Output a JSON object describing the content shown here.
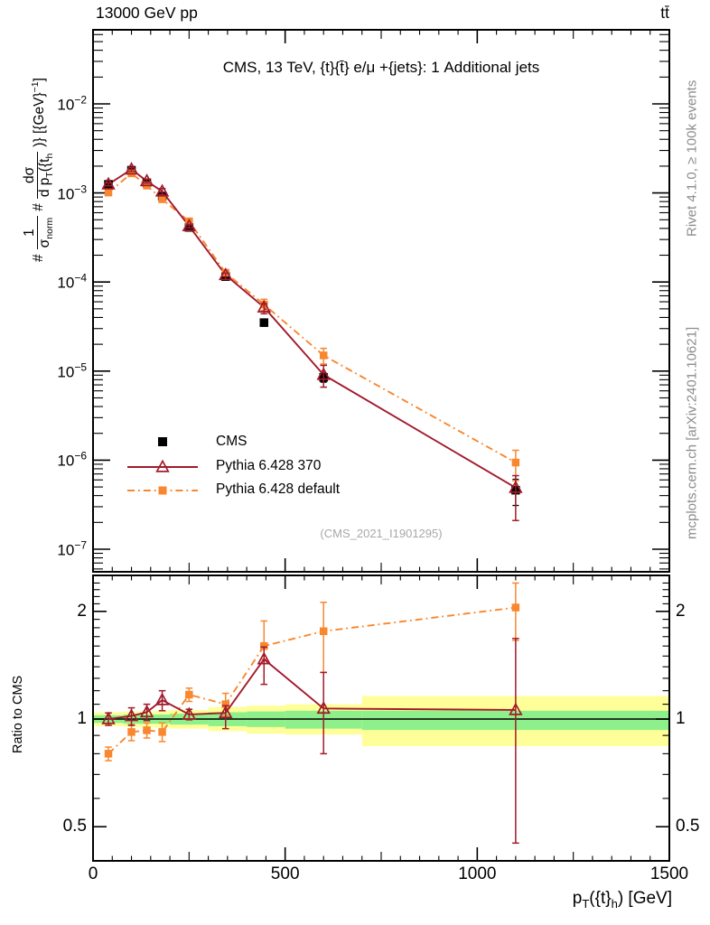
{
  "header": {
    "energy": "13000 GeV pp",
    "process": "tt̄"
  },
  "main_panel": {
    "title": "CMS, 13 TeV, {t}{t̄} e/μ +{jets}: 1 Additional jets",
    "watermark": "(CMS_2021_I1901295)",
    "ytick_exponents": [
      "−2",
      "−3",
      "−4",
      "−5",
      "−6",
      "−7"
    ],
    "ylabel": {
      "hash1": "#",
      "frac1_num": "1",
      "frac1_den_main": "σ",
      "frac1_den_sub": "norm",
      "hash2": "#",
      "frac2_num": "dσ",
      "frac2_den_main": "d p",
      "frac2_den_sub": "T",
      "frac2_den_tail": "({t",
      "frac2_den_tail_sub": "h",
      "suffix_main": " )} [{GeV}",
      "suffix_sup": "−1",
      "suffix_end": "]"
    }
  },
  "ratio_panel": {
    "ylabel": "Ratio to CMS",
    "ytick_labels": [
      "2",
      "1",
      "0.5"
    ]
  },
  "xaxis": {
    "tick_labels": [
      "0",
      "500",
      "1000",
      "1500"
    ],
    "label_p": "p",
    "label_sub_T": "T",
    "label_mid": "({t}",
    "label_sub_h": "h",
    "label_end": ") [GeV]"
  },
  "side_notes": {
    "top": "Rivet 4.1.0, ≥ 100k events",
    "bottom": "mcplots.cern.ch [arXiv:2401.10621]"
  },
  "legend": [
    {
      "label": "CMS",
      "marker": "black-filled-square"
    },
    {
      "label": "Pythia 6.428 370",
      "marker": "darkred-line-open-triangle"
    },
    {
      "label": "Pythia 6.428 default",
      "marker": "orange-dashdot-filled-square"
    }
  ],
  "colors": {
    "cms": "#000000",
    "pythia370": "#a21a2b",
    "pythia_default": "#f8872f",
    "band_yellow": "#ffff99",
    "band_green": "#8ef08a",
    "gray_text": "#8c8c8c",
    "watermark": "#a8a8a8"
  },
  "chart_data": {
    "type": "line",
    "title": "CMS, 13 TeV, {t}{t̄} e/μ +{jets}: 1 Additional jets",
    "xlabel": "pT({t}h) [GeV]",
    "ylabel": "1/σnorm dσ/dpT({t}h) [1/GeV]",
    "ratio_ylabel": "Ratio to CMS",
    "x_range": [
      0,
      1500
    ],
    "main_y_log_range": [
      6e-08,
      0.067
    ],
    "ratio_y_log_range": [
      0.41,
      2.47
    ],
    "ratio_reference": 1.0,
    "legend_position": "middle-left",
    "grid": false,
    "x": [
      40,
      100,
      140,
      180,
      250,
      345,
      445,
      600,
      1100
    ],
    "bin_edges": [
      0,
      80,
      120,
      160,
      200,
      300,
      400,
      500,
      700,
      1500
    ],
    "series": [
      {
        "name": "CMS",
        "style": "points",
        "color": "#000000",
        "marker": "filled-square",
        "values": [
          0.00125,
          0.0018,
          0.0013,
          0.00092,
          0.00041,
          0.000115,
          3.5e-05,
          8.5e-06,
          4.6e-07
        ],
        "err_lo": [
          6e-05,
          8e-05,
          6e-05,
          4.5e-05,
          2e-05,
          7e-06,
          3e-06,
          1e-06,
          1.5e-07
        ],
        "err_hi": [
          6e-05,
          8e-05,
          6e-05,
          4.5e-05,
          2e-05,
          7e-06,
          3e-06,
          1e-06,
          1.5e-07
        ]
      },
      {
        "name": "Pythia 6.428 370",
        "style": "solid-line",
        "color": "#a21a2b",
        "marker": "open-triangle",
        "values": [
          0.00125,
          0.00184,
          0.00136,
          0.00104,
          0.000425,
          0.00012,
          5.2e-05,
          9.1e-06,
          4.9e-07
        ],
        "err_lo": [
          5e-05,
          9e-05,
          7e-05,
          8e-05,
          2e-05,
          1.3e-05,
          8e-06,
          2.5e-06,
          2.8e-07
        ],
        "err_hi": [
          5e-05,
          9e-05,
          7e-05,
          8e-05,
          2e-05,
          6e-06,
          5e-06,
          2.5e-06,
          1.8e-07
        ],
        "ratio": [
          1.0,
          1.02,
          1.045,
          1.13,
          1.03,
          1.04,
          1.47,
          1.07,
          1.06
        ],
        "ratio_err_lo": [
          0.04,
          0.06,
          0.055,
          0.075,
          0.035,
          0.1,
          0.22,
          0.27,
          0.61
        ],
        "ratio_err_hi": [
          0.04,
          0.055,
          0.055,
          0.07,
          0.035,
          0.05,
          0.12,
          0.28,
          0.62
        ]
      },
      {
        "name": "Pythia 6.428 default",
        "style": "dash-dot-line",
        "color": "#f8872f",
        "marker": "filled-square",
        "values": [
          0.00101,
          0.00166,
          0.00121,
          0.00085,
          0.00048,
          0.000127,
          5.6e-05,
          1.5e-05,
          9.4e-07
        ],
        "err_lo": [
          4e-05,
          8e-05,
          6e-05,
          5e-05,
          2.4e-05,
          9e-06,
          8e-06,
          3e-06,
          3.5e-07
        ],
        "err_hi": [
          4e-05,
          8e-05,
          6e-05,
          5e-05,
          2.4e-05,
          9e-06,
          8e-06,
          3e-06,
          3.5e-07
        ],
        "ratio": [
          0.8,
          0.92,
          0.93,
          0.92,
          1.17,
          1.1,
          1.6,
          1.76,
          2.05
        ],
        "ratio_err_lo": [
          0.035,
          0.05,
          0.045,
          0.055,
          0.05,
          0.075,
          0.13,
          0.41,
          0.39
        ],
        "ratio_err_hi": [
          0.035,
          0.045,
          0.045,
          0.055,
          0.05,
          0.08,
          0.28,
          0.36,
          0.35
        ]
      }
    ],
    "uncertainty_bands": {
      "yellow_lo": [
        0.955,
        0.95,
        0.95,
        0.945,
        0.94,
        0.925,
        0.91,
        0.905,
        0.84
      ],
      "yellow_hi": [
        1.045,
        1.05,
        1.05,
        1.055,
        1.06,
        1.08,
        1.09,
        1.1,
        1.16
      ],
      "green_lo": [
        0.975,
        0.97,
        0.97,
        0.97,
        0.965,
        0.955,
        0.95,
        0.94,
        0.932
      ],
      "green_hi": [
        1.025,
        1.03,
        1.03,
        1.03,
        1.035,
        1.045,
        1.05,
        1.055,
        1.055
      ]
    }
  }
}
